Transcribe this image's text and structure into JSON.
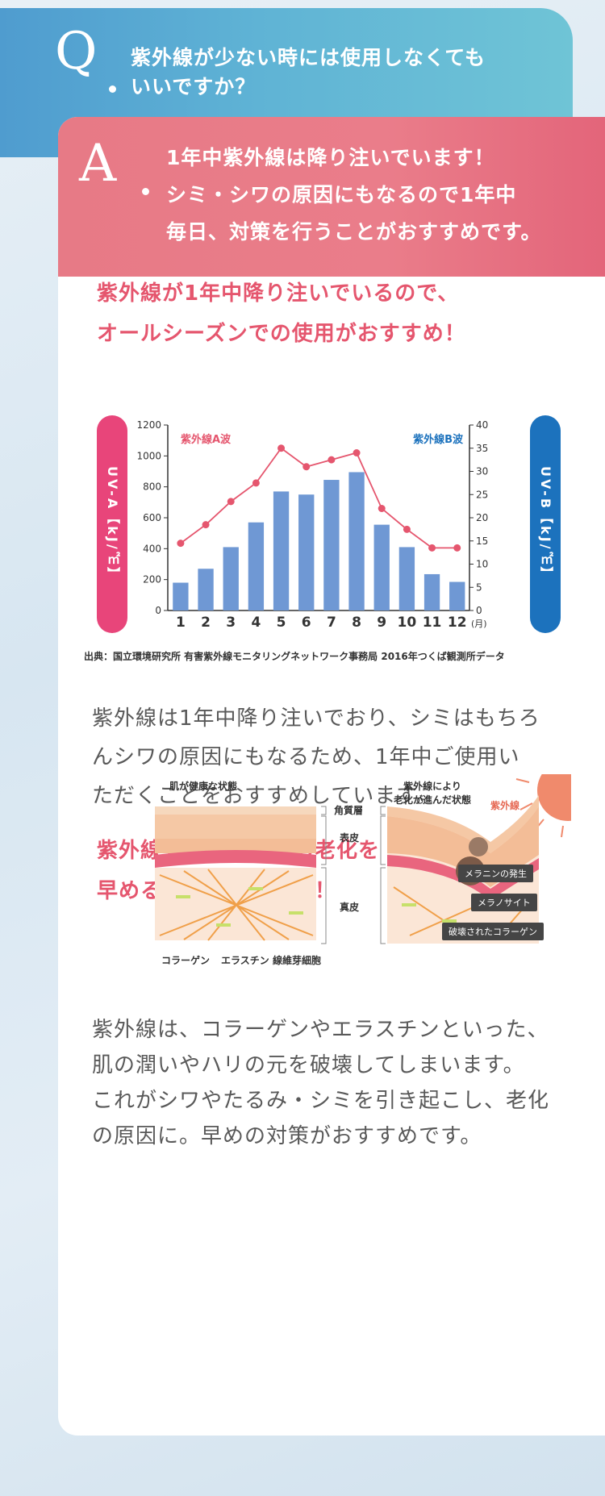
{
  "question": {
    "letter": "Q",
    "lines": [
      "紫外線が少ない時には使用しなくても",
      "いいですか？"
    ]
  },
  "answer": {
    "letter": "A",
    "lines": [
      "1年中紫外線は降り注いでいます！",
      "シミ・シワの原因にもなるので1年中",
      "毎日、対策を行うことがおすすめです。"
    ]
  },
  "section1": {
    "heading_lines": [
      "紫外線が1年中降り注いでいるので、",
      "オールシーズンでの使用がおすすめ！"
    ],
    "body_lines": [
      "紫外線は1年中降り注いでおり、シミはもちろ",
      "んシワの原因にもなるため、1年中ご使用い",
      "ただくことをおすすめしています。"
    ]
  },
  "chart_data": {
    "type": "bar",
    "categories": [
      "1",
      "2",
      "3",
      "4",
      "5",
      "6",
      "7",
      "8",
      "9",
      "10",
      "11",
      "12"
    ],
    "x_unit": "(月)",
    "series": [
      {
        "name": "紫外線A波",
        "type": "bar",
        "axis": "left",
        "values": [
          180,
          270,
          410,
          570,
          770,
          750,
          845,
          895,
          555,
          410,
          235,
          185
        ]
      },
      {
        "name": "紫外線B波",
        "type": "line",
        "axis": "right",
        "values": [
          14.5,
          18.5,
          23.5,
          27.5,
          35,
          31,
          32.5,
          34,
          22,
          17.5,
          13.5,
          13.5
        ]
      }
    ],
    "ylabel_left": "UV-A【kJ/㎡】",
    "ylabel_right": "UV-B【kJ/㎡】",
    "ylim_left": [
      0,
      1200
    ],
    "yticks_left": [
      0,
      200,
      400,
      600,
      800,
      1000,
      1200
    ],
    "ylim_right": [
      0,
      40
    ],
    "yticks_right": [
      0,
      5,
      10,
      15,
      20,
      25,
      30,
      35,
      40
    ],
    "source": "出典：国立環境研究所 有害紫外線モニタリングネットワーク事務局 2016年つくば観測所データ",
    "colors": {
      "bar": "#6f98d4",
      "line": "#e5566e",
      "left_pill": "#e8457a",
      "right_pill": "#1c72bd"
    }
  },
  "section2": {
    "heading_lines": [
      "紫外線を浴びると肌の老化を",
      "早めるので徹底対策を！"
    ],
    "body_lines": [
      "紫外線は、コラーゲンやエラスチンといった、",
      "肌の潤いやハリの元を破壊してしまいます。",
      "これがシワやたるみ・シミを引き起こし、老化",
      "の原因に。早めの対策がおすすめです。"
    ]
  },
  "skin_diagram": {
    "healthy_title": "肌が健康な状態",
    "aged_title_lines": [
      "紫外線により",
      "老化が進んだ状態"
    ],
    "sun_label": "紫外線",
    "layer_labels": {
      "stratum": "角質層",
      "epidermis": "表皮",
      "dermis": "真皮"
    },
    "bottom_labels": [
      "コラーゲン",
      "エラスチン",
      "線維芽細胞"
    ],
    "tags": [
      "メラニンの発生",
      "メラノサイト",
      "破壊されたコラーゲン"
    ]
  }
}
